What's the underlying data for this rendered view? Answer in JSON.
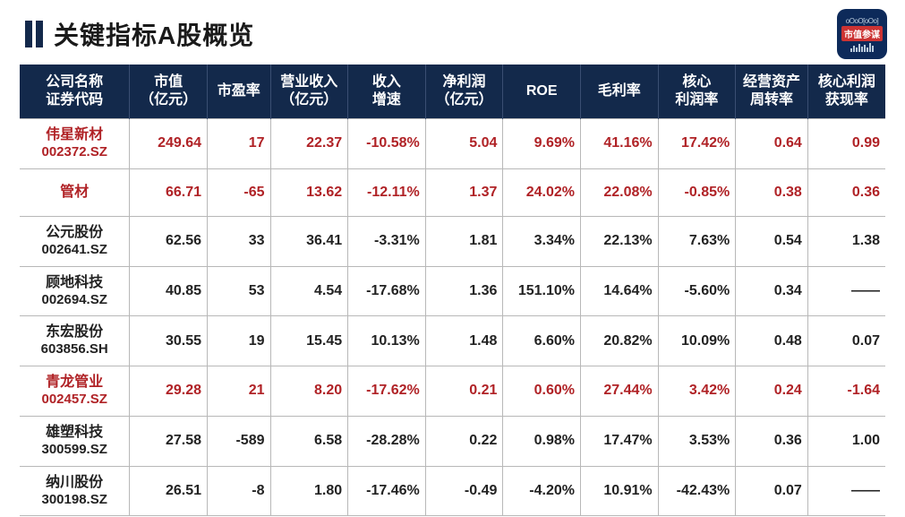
{
  "title": "关键指标A股概览",
  "logo": {
    "top": "oOoO[oOo]",
    "mid": "市值参谋"
  },
  "colors": {
    "header_bg": "#13294b",
    "highlight": "#b02226",
    "border": "#b8b8b8",
    "text": "#222222"
  },
  "table": {
    "columns": [
      "公司名称\n证券代码",
      "市值\n（亿元）",
      "市盈率",
      "营业收入\n（亿元）",
      "收入\n增速",
      "净利润\n（亿元）",
      "ROE",
      "毛利率",
      "核心\n利润率",
      "经营资产\n周转率",
      "核心利润\n获现率"
    ],
    "rows": [
      {
        "highlight": true,
        "name": "伟星新材",
        "code": "002372.SZ",
        "cells": [
          "249.64",
          "17",
          "22.37",
          "-10.58%",
          "5.04",
          "9.69%",
          "41.16%",
          "17.42%",
          "0.64",
          "0.99"
        ]
      },
      {
        "highlight": true,
        "name": "管材",
        "code": "",
        "cells": [
          "66.71",
          "-65",
          "13.62",
          "-12.11%",
          "1.37",
          "24.02%",
          "22.08%",
          "-0.85%",
          "0.38",
          "0.36"
        ]
      },
      {
        "highlight": false,
        "name": "公元股份",
        "code": "002641.SZ",
        "cells": [
          "62.56",
          "33",
          "36.41",
          "-3.31%",
          "1.81",
          "3.34%",
          "22.13%",
          "7.63%",
          "0.54",
          "1.38"
        ]
      },
      {
        "highlight": false,
        "name": "顾地科技",
        "code": "002694.SZ",
        "cells": [
          "40.85",
          "53",
          "4.54",
          "-17.68%",
          "1.36",
          "151.10%",
          "14.64%",
          "-5.60%",
          "0.34",
          "——"
        ]
      },
      {
        "highlight": false,
        "name": "东宏股份",
        "code": "603856.SH",
        "cells": [
          "30.55",
          "19",
          "15.45",
          "10.13%",
          "1.48",
          "6.60%",
          "20.82%",
          "10.09%",
          "0.48",
          "0.07"
        ]
      },
      {
        "highlight": true,
        "name": "青龙管业",
        "code": "002457.SZ",
        "cells": [
          "29.28",
          "21",
          "8.20",
          "-17.62%",
          "0.21",
          "0.60%",
          "27.44%",
          "3.42%",
          "0.24",
          "-1.64"
        ]
      },
      {
        "highlight": false,
        "name": "雄塑科技",
        "code": "300599.SZ",
        "cells": [
          "27.58",
          "-589",
          "6.58",
          "-28.28%",
          "0.22",
          "0.98%",
          "17.47%",
          "3.53%",
          "0.36",
          "1.00"
        ]
      },
      {
        "highlight": false,
        "name": "纳川股份",
        "code": "300198.SZ",
        "cells": [
          "26.51",
          "-8",
          "1.80",
          "-17.46%",
          "-0.49",
          "-4.20%",
          "10.91%",
          "-42.43%",
          "0.07",
          "——"
        ]
      }
    ]
  }
}
